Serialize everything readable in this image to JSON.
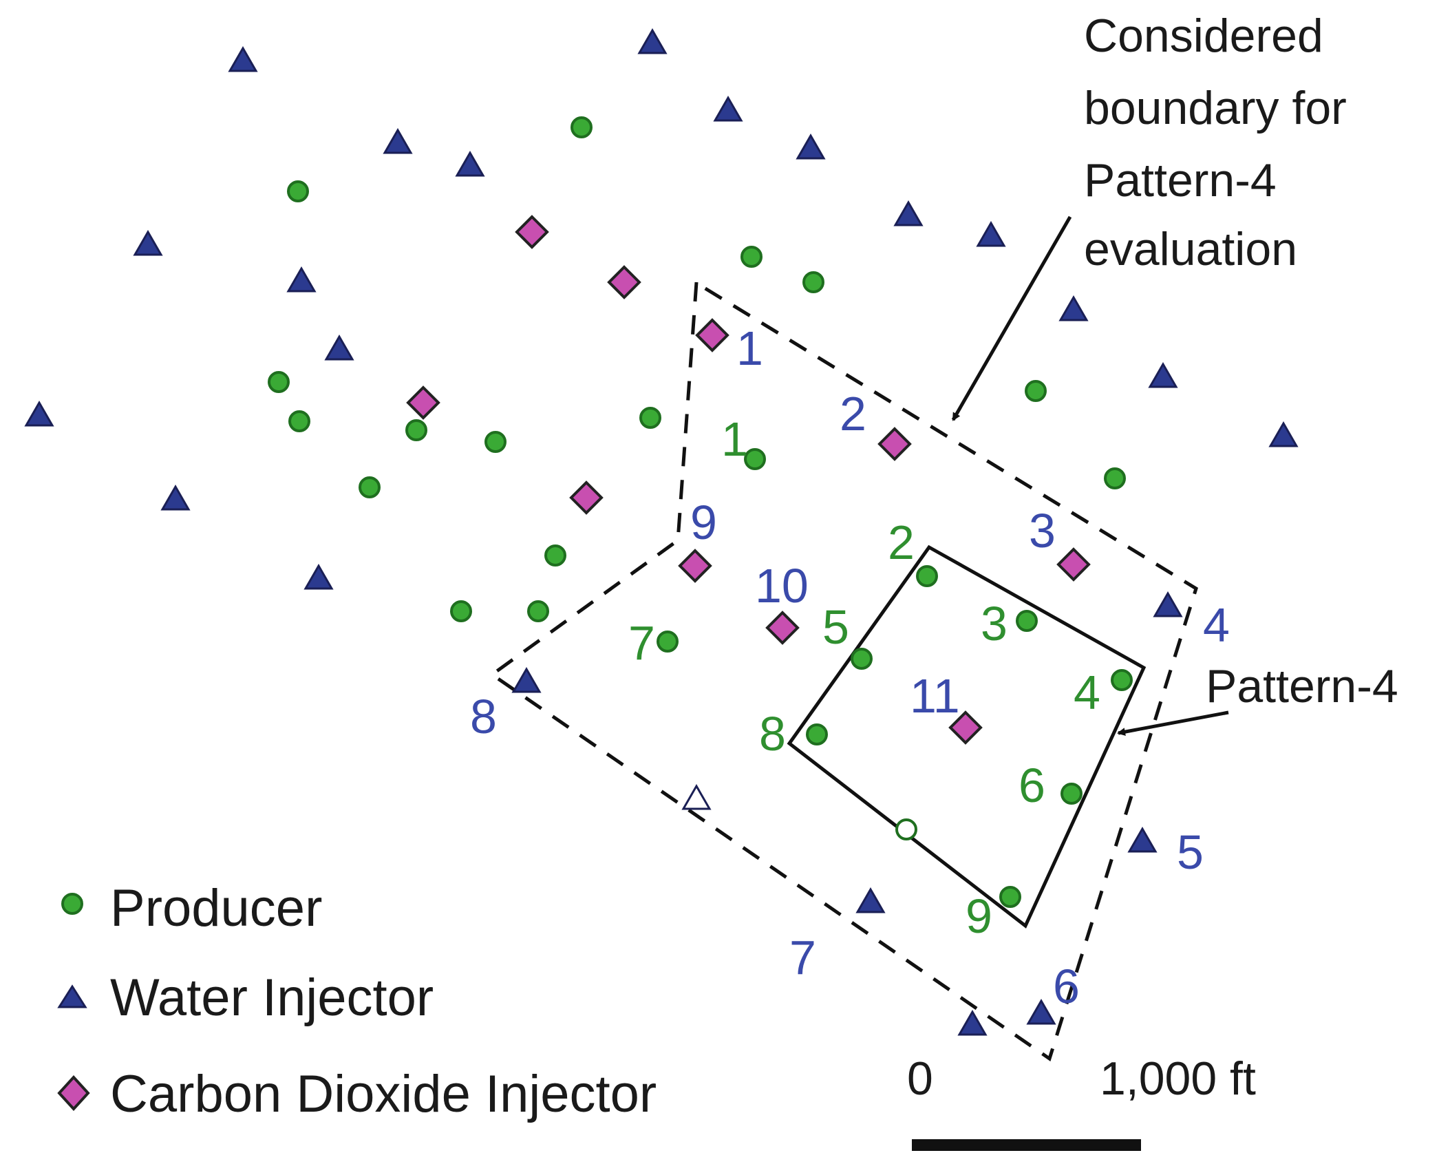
{
  "annotations": {
    "boundary_lines": [
      "Considered",
      "boundary for",
      "Pattern-4",
      "evaluation"
    ],
    "pattern_label": "Pattern-4"
  },
  "legend": {
    "producer": "Producer",
    "water_injector": "Water Injector",
    "co2_injector": "Carbon Dioxide Injector"
  },
  "scale_bar": {
    "start_label": "0",
    "end_label": "1,000 ft"
  },
  "colors": {
    "producer_fill": "#3aaa35",
    "producer_stroke": "#1f6f1f",
    "water_injector_fill": "#2b3a8f",
    "co2_injector_fill": "#c84fb0",
    "producer_label": "#2f8f2f",
    "injector_label": "#3a4aaa"
  },
  "wells": {
    "producers": [
      {
        "label": ""
      },
      {
        "label": ""
      },
      {
        "label": ""
      },
      {
        "label": ""
      },
      {
        "label": ""
      },
      {
        "label": ""
      },
      {
        "label": ""
      },
      {
        "label": ""
      },
      {
        "label": ""
      },
      {
        "label": ""
      },
      {
        "label": ""
      },
      {
        "label": ""
      },
      {
        "label": ""
      },
      {
        "label": ""
      },
      {
        "label": ""
      },
      {
        "label": "1"
      },
      {
        "label": "2"
      },
      {
        "label": "3"
      },
      {
        "label": "4"
      },
      {
        "label": "5"
      },
      {
        "label": "6"
      },
      {
        "label": "7"
      },
      {
        "label": "8"
      },
      {
        "label": "9"
      },
      {
        "label": "",
        "hollow": true
      }
    ],
    "water_injectors": [
      {
        "label": ""
      },
      {
        "label": ""
      },
      {
        "label": ""
      },
      {
        "label": ""
      },
      {
        "label": ""
      },
      {
        "label": ""
      },
      {
        "label": ""
      },
      {
        "label": ""
      },
      {
        "label": ""
      },
      {
        "label": ""
      },
      {
        "label": ""
      },
      {
        "label": ""
      },
      {
        "label": ""
      },
      {
        "label": ""
      },
      {
        "label": ""
      },
      {
        "label": ""
      },
      {
        "label": ""
      },
      {
        "label": ""
      },
      {
        "label": "",
        "hollow": true
      },
      {
        "label": "4"
      },
      {
        "label": "5"
      },
      {
        "label": "6"
      },
      {
        "label": "7"
      },
      {
        "label": "8"
      }
    ],
    "co2_injectors": [
      {
        "label": ""
      },
      {
        "label": ""
      },
      {
        "label": ""
      },
      {
        "label": ""
      },
      {
        "label": "1"
      },
      {
        "label": "2"
      },
      {
        "label": "3"
      },
      {
        "label": "9"
      },
      {
        "label": "10"
      },
      {
        "label": "11"
      }
    ]
  }
}
